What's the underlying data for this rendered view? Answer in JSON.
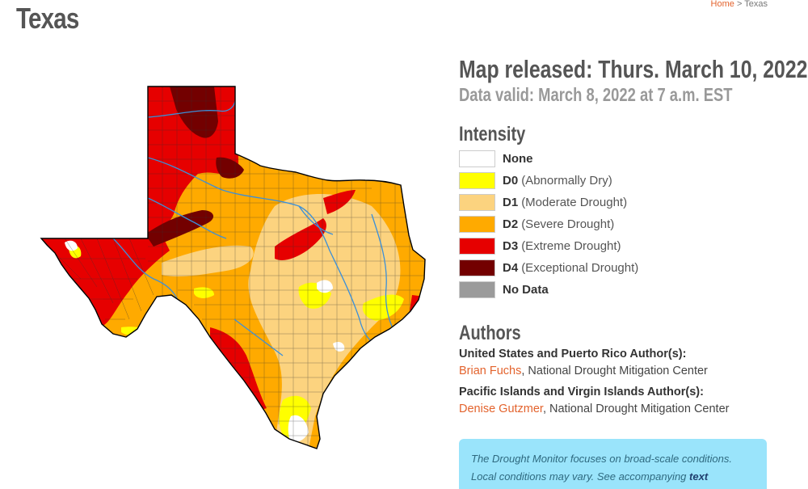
{
  "page": {
    "title": "Texas"
  },
  "breadcrumb": {
    "home": "Home",
    "separator": ">",
    "current": "Texas"
  },
  "map": {
    "release": "Map released: Thurs. March 10, 2022",
    "valid": "Data valid: March 8, 2022 at 7 a.m. EST"
  },
  "intensity": {
    "heading": "Intensity",
    "items": [
      {
        "code": "None",
        "desc": "",
        "color": "#ffffff"
      },
      {
        "code": "D0",
        "desc": "(Abnormally Dry)",
        "color": "#ffff00"
      },
      {
        "code": "D1",
        "desc": "(Moderate Drought)",
        "color": "#fcd37f"
      },
      {
        "code": "D2",
        "desc": "(Severe Drought)",
        "color": "#ffaa00"
      },
      {
        "code": "D3",
        "desc": "(Extreme Drought)",
        "color": "#e60000"
      },
      {
        "code": "D4",
        "desc": "(Exceptional Drought)",
        "color": "#730000"
      },
      {
        "code": "No Data",
        "desc": "",
        "color": "#9b9b9b"
      }
    ]
  },
  "authors": {
    "heading": "Authors",
    "groups": [
      {
        "role": "United States and Puerto Rico Author(s):",
        "name": "Brian Fuchs",
        "org": ", National Drought Mitigation Center"
      },
      {
        "role": "Pacific Islands and Virgin Islands Author(s):",
        "name": "Denise Gutzmer",
        "org": ", National Drought Mitigation Center"
      }
    ]
  },
  "note": {
    "line1": "The Drought Monitor focuses on broad-scale conditions.",
    "line2": "Local conditions may vary. See accompanying",
    "link": "text"
  }
}
